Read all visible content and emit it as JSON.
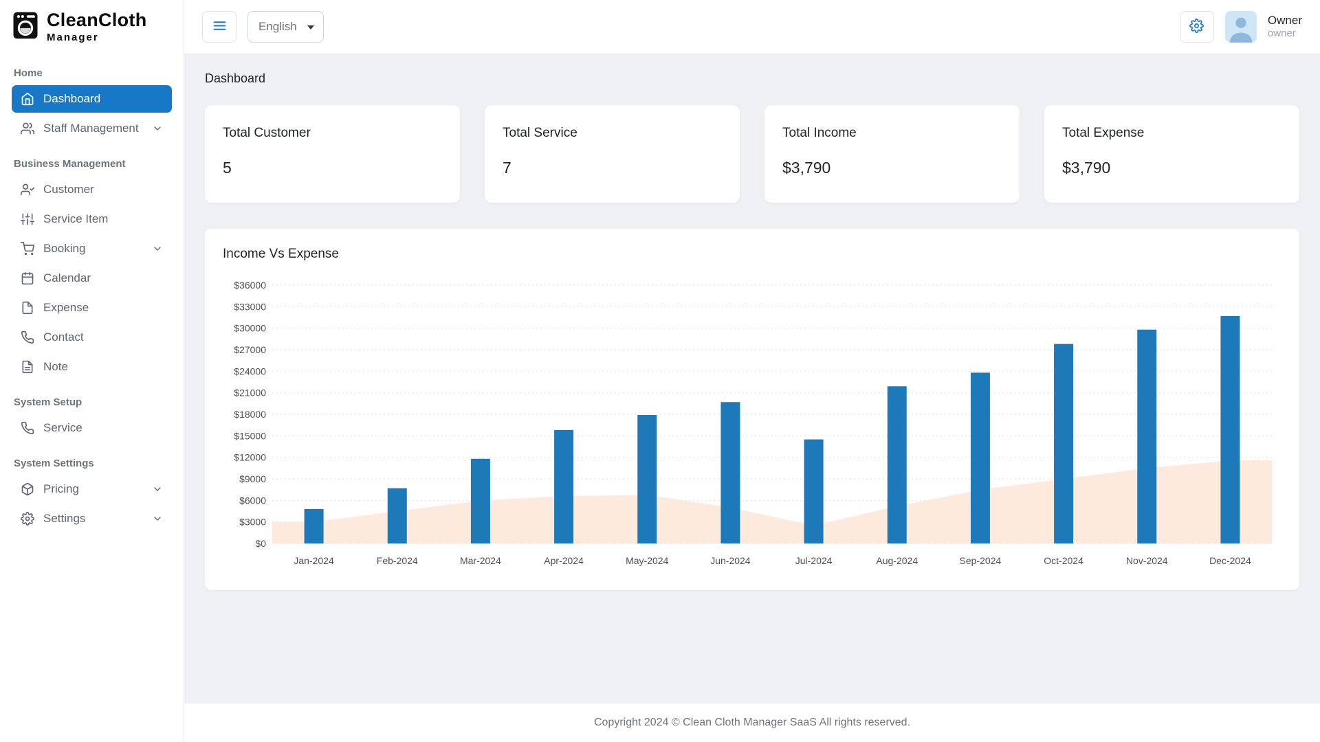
{
  "app": {
    "logo_title": "CleanCloth",
    "logo_subtitle": "Manager"
  },
  "header": {
    "language": "English",
    "user": {
      "name": "Owner",
      "role": "owner"
    }
  },
  "sidebar": {
    "sections": [
      {
        "label": "Home",
        "items": [
          {
            "label": "Dashboard",
            "icon": "home",
            "active": true
          },
          {
            "label": "Staff Management",
            "icon": "users",
            "expandable": true
          }
        ]
      },
      {
        "label": "Business Management",
        "items": [
          {
            "label": "Customer",
            "icon": "user-check"
          },
          {
            "label": "Service Item",
            "icon": "sliders"
          },
          {
            "label": "Booking",
            "icon": "shopping-cart",
            "expandable": true
          },
          {
            "label": "Calendar",
            "icon": "calendar"
          },
          {
            "label": "Expense",
            "icon": "file"
          },
          {
            "label": "Contact",
            "icon": "phone"
          },
          {
            "label": "Note",
            "icon": "file-text"
          }
        ]
      },
      {
        "label": "System Setup",
        "items": [
          {
            "label": "Service",
            "icon": "phone"
          }
        ]
      },
      {
        "label": "System Settings",
        "items": [
          {
            "label": "Pricing",
            "icon": "box",
            "expandable": true
          },
          {
            "label": "Settings",
            "icon": "gear",
            "expandable": true
          }
        ]
      }
    ]
  },
  "page": {
    "title": "Dashboard"
  },
  "stats": [
    {
      "label": "Total Customer",
      "value": "5"
    },
    {
      "label": "Total Service",
      "value": "7"
    },
    {
      "label": "Total Income",
      "value": "$3,790"
    },
    {
      "label": "Total Expense",
      "value": "$3,790"
    }
  ],
  "chart_data": {
    "type": "bar",
    "title": "Income Vs Expense",
    "categories": [
      "Jan-2024",
      "Feb-2024",
      "Mar-2024",
      "Apr-2024",
      "May-2024",
      "Jun-2024",
      "Jul-2024",
      "Aug-2024",
      "Sep-2024",
      "Oct-2024",
      "Nov-2024",
      "Dec-2024"
    ],
    "series": [
      {
        "name": "Income",
        "type": "bar",
        "color": "#1e79b8",
        "values": [
          4800,
          7700,
          11800,
          15800,
          17900,
          19700,
          14500,
          21900,
          23800,
          27800,
          29800,
          31700
        ]
      },
      {
        "name": "Expense",
        "type": "area",
        "color": "#fdeadd",
        "values": [
          3000,
          4500,
          6000,
          6600,
          6800,
          5000,
          2500,
          5200,
          7500,
          9000,
          10500,
          11600
        ]
      }
    ],
    "ylim": [
      0,
      36000
    ],
    "ytick_step": 3000,
    "ytick_prefix": "$",
    "grid": "dotted-horizontal",
    "legend": "none"
  },
  "footer": {
    "text": "Copyright 2024 © Clean Cloth Manager SaaS All rights reserved."
  },
  "colors": {
    "primary": "#1878c8",
    "bar": "#1e79b8",
    "area_fill": "#fdeadd",
    "content_bg": "#eef0f4"
  }
}
